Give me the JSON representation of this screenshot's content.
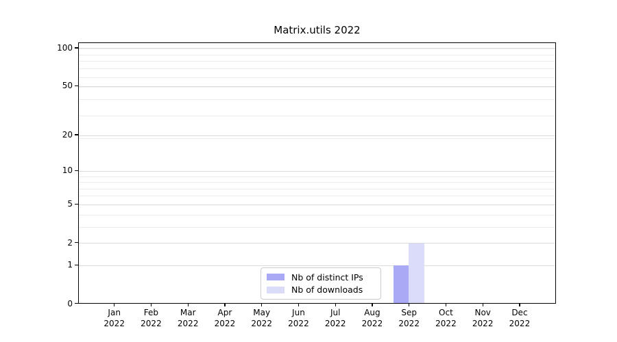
{
  "chart_data": {
    "type": "bar",
    "title": "Matrix.utils 2022",
    "x_tick_months": [
      "Jan",
      "Feb",
      "Mar",
      "Apr",
      "May",
      "Jun",
      "Jul",
      "Aug",
      "Sep",
      "Oct",
      "Nov",
      "Dec"
    ],
    "x_tick_year": "2022",
    "y_ticks": [
      0,
      1,
      2,
      5,
      10,
      20,
      50,
      100
    ],
    "y_scale": "log1p",
    "ylim": [
      0,
      110
    ],
    "grid": true,
    "legend_position": "bottom-center",
    "series": [
      {
        "name": "Nb of distinct IPs",
        "color": "#a9a9f6",
        "values": [
          0,
          0,
          0,
          0,
          0,
          0,
          0,
          0,
          1,
          0,
          0,
          0
        ]
      },
      {
        "name": "Nb of downloads",
        "color": "#dbdbfa",
        "values": [
          0,
          0,
          0,
          0,
          0,
          0,
          0,
          0,
          2,
          0,
          0,
          0
        ]
      }
    ]
  }
}
